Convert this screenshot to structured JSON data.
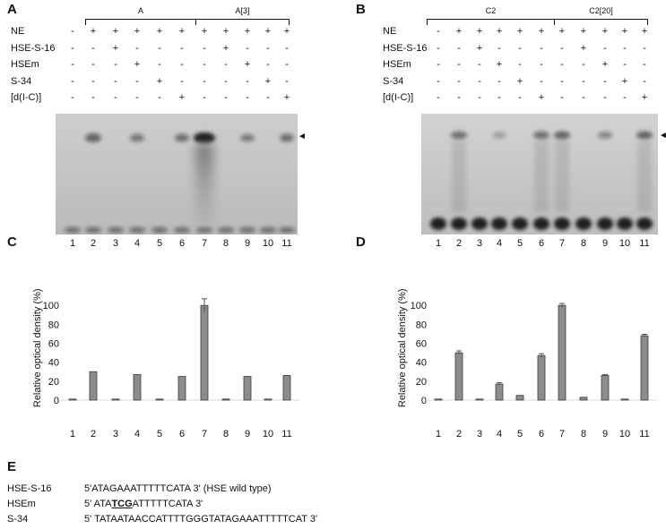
{
  "panels": {
    "A": {
      "letter": "A",
      "groups": [
        {
          "label": "A"
        },
        {
          "label": "A[3]"
        }
      ],
      "rows": [
        {
          "label": "NE",
          "signs": [
            "-",
            "+",
            "+",
            "+",
            "+",
            "+",
            "+",
            "+",
            "+",
            "+",
            "+"
          ]
        },
        {
          "label": "HSE-S-16",
          "signs": [
            "-",
            "-",
            "+",
            "-",
            "-",
            "-",
            "-",
            "+",
            "-",
            "-",
            "-"
          ]
        },
        {
          "label": "HSEm",
          "signs": [
            "-",
            "-",
            "-",
            "+",
            "-",
            "-",
            "-",
            "-",
            "+",
            "-",
            "-"
          ]
        },
        {
          "label": "S-34",
          "signs": [
            "-",
            "-",
            "-",
            "-",
            "+",
            "-",
            "-",
            "-",
            "-",
            "+",
            "-"
          ]
        },
        {
          "label": "[d(I-C)]",
          "signs": [
            "-",
            "-",
            "-",
            "-",
            "-",
            "+",
            "-",
            "-",
            "-",
            "-",
            "+"
          ]
        }
      ],
      "lanes": [
        "1",
        "2",
        "3",
        "4",
        "5",
        "6",
        "7",
        "8",
        "9",
        "10",
        "11"
      ],
      "arrow": "◄"
    },
    "B": {
      "letter": "B",
      "groups": [
        {
          "label": "C2"
        },
        {
          "label": "C2[20]"
        }
      ],
      "rows": [
        {
          "label": "NE",
          "signs": [
            "-",
            "+",
            "+",
            "+",
            "+",
            "+",
            "+",
            "+",
            "+",
            "+",
            "+"
          ]
        },
        {
          "label": "HSE-S-16",
          "signs": [
            "-",
            "-",
            "+",
            "-",
            "-",
            "-",
            "-",
            "+",
            "-",
            "-",
            "-"
          ]
        },
        {
          "label": "HSEm",
          "signs": [
            "-",
            "-",
            "-",
            "+",
            "-",
            "-",
            "-",
            "-",
            "+",
            "-",
            "-"
          ]
        },
        {
          "label": "S-34",
          "signs": [
            "-",
            "-",
            "-",
            "-",
            "+",
            "-",
            "-",
            "-",
            "-",
            "+",
            "-"
          ]
        },
        {
          "label": "[d(I-C)]",
          "signs": [
            "-",
            "-",
            "-",
            "-",
            "-",
            "+",
            "-",
            "-",
            "-",
            "-",
            "+"
          ]
        }
      ],
      "lanes": [
        "1",
        "2",
        "3",
        "4",
        "5",
        "6",
        "7",
        "8",
        "9",
        "10",
        "11"
      ],
      "arrow": "◄"
    }
  },
  "chart_data": [
    {
      "panel": "C",
      "type": "bar",
      "ylabel": "Relative optical density (%)",
      "categories": [
        "1",
        "2",
        "3",
        "4",
        "5",
        "6",
        "7",
        "8",
        "9",
        "10",
        "11"
      ],
      "values": [
        0,
        30,
        0,
        27,
        0,
        25,
        100,
        0,
        25,
        0,
        26
      ],
      "errors": [
        0,
        0,
        0,
        0,
        0,
        0,
        7,
        0,
        0,
        0,
        0
      ],
      "yticks": [
        "0",
        "20",
        "40",
        "60",
        "80",
        "100"
      ],
      "ylim": [
        0,
        110
      ],
      "color": "#8c8c8c"
    },
    {
      "panel": "D",
      "type": "bar",
      "ylabel": "Relative optical density (%)",
      "categories": [
        "1",
        "2",
        "3",
        "4",
        "5",
        "6",
        "7",
        "8",
        "9",
        "10",
        "11"
      ],
      "values": [
        0,
        50,
        1,
        17,
        5,
        47,
        100,
        3,
        26,
        0,
        68
      ],
      "errors": [
        0,
        2,
        0,
        1.5,
        0,
        2,
        2,
        0,
        1,
        0,
        1.5
      ],
      "yticks": [
        "0",
        "20",
        "40",
        "60",
        "80",
        "100"
      ],
      "ylim": [
        0,
        110
      ],
      "color": "#8c8c8c"
    }
  ],
  "chart_letters": {
    "C": "C",
    "D": "D"
  },
  "sequences": {
    "letter": "E",
    "items": [
      {
        "name": "HSE-S-16",
        "pre": "5'ATAGAAATTTTTCATA 3' (HSE wild type)",
        "mut": "",
        "post": ""
      },
      {
        "name": "HSEm",
        "pre": "5' ATA",
        "mut": "TCG",
        "post": "ATTTTTCATA 3'"
      },
      {
        "name": "S-34",
        "pre": "5' TATAATAACCATTTTGGGTATAGAAATTTTTCAT 3'",
        "mut": "",
        "post": ""
      }
    ]
  },
  "colors": {
    "gel_bg": "#c6c6c6",
    "band": "#1a1a1a",
    "bar": "#8c8c8c"
  }
}
